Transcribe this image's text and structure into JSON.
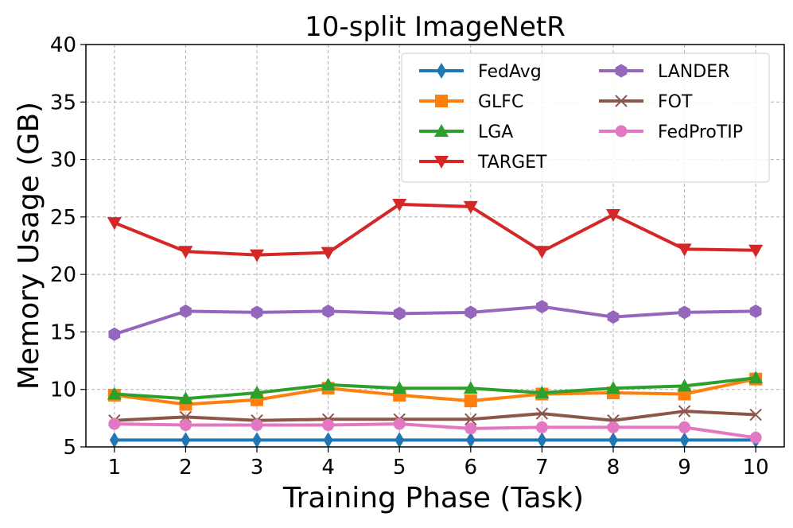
{
  "chart_data": {
    "type": "line",
    "title": "10-split ImageNetR",
    "xlabel": "Training Phase (Task)",
    "ylabel": "Memory Usage (GB)",
    "x": [
      1,
      2,
      3,
      4,
      5,
      6,
      7,
      8,
      9,
      10
    ],
    "x_tick_labels": [
      "1",
      "2",
      "3",
      "4",
      "5",
      "6",
      "7",
      "8",
      "9",
      "10"
    ],
    "y_ticks": [
      5,
      10,
      15,
      20,
      25,
      30,
      35,
      40
    ],
    "y_tick_labels": [
      "5",
      "10",
      "15",
      "20",
      "25",
      "30",
      "35",
      "40"
    ],
    "xlim": [
      0.6,
      10.4
    ],
    "ylim": [
      5,
      40
    ],
    "grid": true,
    "legend_position": "top-right",
    "legend_columns": 2,
    "series": [
      {
        "name": "FedAvg",
        "color": "#1f77b4",
        "marker": "thin-diamond",
        "values": [
          5.6,
          5.6,
          5.6,
          5.6,
          5.6,
          5.6,
          5.6,
          5.6,
          5.6,
          5.6
        ]
      },
      {
        "name": "GLFC",
        "color": "#ff7f0e",
        "marker": "square",
        "values": [
          9.5,
          8.7,
          9.1,
          10.1,
          9.5,
          9.0,
          9.6,
          9.7,
          9.6,
          10.9
        ]
      },
      {
        "name": "LGA",
        "color": "#2ca02c",
        "marker": "triangle-up",
        "values": [
          9.6,
          9.2,
          9.7,
          10.4,
          10.1,
          10.1,
          9.7,
          10.1,
          10.3,
          11.0
        ]
      },
      {
        "name": "TARGET",
        "color": "#d62728",
        "marker": "triangle-down",
        "values": [
          24.5,
          22.0,
          21.7,
          21.9,
          26.1,
          25.9,
          22.0,
          25.2,
          22.2,
          22.1
        ]
      },
      {
        "name": "LANDER",
        "color": "#9467bd",
        "marker": "hexagon",
        "values": [
          14.8,
          16.8,
          16.7,
          16.8,
          16.6,
          16.7,
          17.2,
          16.3,
          16.7,
          16.8
        ]
      },
      {
        "name": "FOT",
        "color": "#8c564b",
        "marker": "x",
        "values": [
          7.3,
          7.6,
          7.3,
          7.4,
          7.4,
          7.4,
          7.9,
          7.3,
          8.1,
          7.8
        ]
      },
      {
        "name": "FedProTIP",
        "color": "#e377c2",
        "marker": "circle",
        "values": [
          7.0,
          6.9,
          6.9,
          6.9,
          7.0,
          6.6,
          6.7,
          6.7,
          6.7,
          5.8
        ]
      }
    ]
  }
}
